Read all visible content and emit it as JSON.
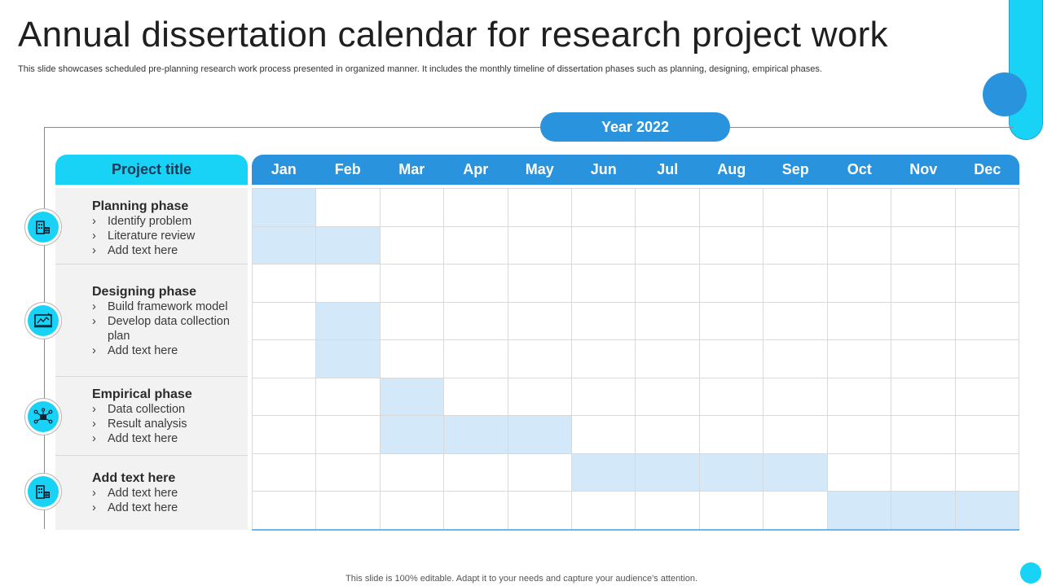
{
  "title": "Annual dissertation calendar for research project work",
  "subtitle": "This slide showcases scheduled pre-planning research work process presented in organized manner. It includes the monthly timeline of dissertation phases such as planning, designing, empirical phases.",
  "year_label": "Year 2022",
  "project_title_header": "Project title",
  "months": [
    "Jan",
    "Feb",
    "Mar",
    "Apr",
    "May",
    "Jun",
    "Jul",
    "Aug",
    "Sep",
    "Oct",
    "Nov",
    "Dec"
  ],
  "phases": [
    {
      "title": "Planning phase",
      "items": [
        "Identify problem",
        "Literature review",
        "Add text here"
      ],
      "icon": "building-calculator-icon"
    },
    {
      "title": "Designing phase",
      "items": [
        "Build framework model",
        "Develop data collection plan",
        "Add text here"
      ],
      "icon": "design-board-icon"
    },
    {
      "title": "Empirical phase",
      "items": [
        "Data collection",
        "Result analysis",
        "Add text here"
      ],
      "icon": "network-chip-icon"
    },
    {
      "title": "Add text  here",
      "items": [
        "Add text here",
        "Add text here"
      ],
      "icon": "building-calculator-icon"
    }
  ],
  "schedule_rows": [
    [
      "Jan"
    ],
    [
      "Jan",
      "Feb"
    ],
    [],
    [
      "Feb"
    ],
    [
      "Feb"
    ],
    [
      "Mar"
    ],
    [
      "Mar",
      "Apr",
      "May"
    ],
    [
      "Jun",
      "Jul",
      "Aug",
      "Sep"
    ],
    [
      "Oct",
      "Nov",
      "Dec"
    ]
  ],
  "colors": {
    "accent_cyan": "#19d3f6",
    "accent_blue": "#2a93dd",
    "highlight_cell": "#d3e8f8"
  },
  "footer": "This slide is 100% editable. Adapt it to your needs and capture your audience's attention."
}
